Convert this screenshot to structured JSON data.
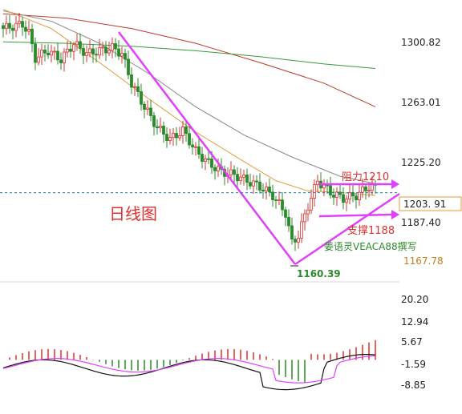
{
  "chart_data": [
    {
      "type": "candlestick",
      "title": "",
      "annotation_title": "日线图",
      "price_axis_ticks": [
        1300.82,
        1263.01,
        1225.2,
        1187.4
      ],
      "current_price": "1203. 91",
      "lower_marker": "1167.78",
      "low_label": "1160.39",
      "resistance_label": "阻力1210",
      "support_label": "支撑1188",
      "author_label": "姜语灵VEACA88撰写",
      "ylim": [
        1150,
        1330
      ],
      "colors": {
        "up": "#e0302e",
        "down": "#2b8a2b",
        "annotation": "#e040fb",
        "ref_line": "#1f7ab8"
      },
      "moving_averages": [
        {
          "color": "#c0392b",
          "points": [
            [
              0,
              1325
            ],
            [
              20,
              1322
            ],
            [
              40,
              1315
            ],
            [
              60,
              1305
            ],
            [
              80,
              1292
            ],
            [
              100,
              1278
            ],
            [
              116,
              1262
            ]
          ]
        },
        {
          "color": "#3a9a3a",
          "points": [
            [
              0,
              1306
            ],
            [
              20,
              1305
            ],
            [
              40,
              1303
            ],
            [
              60,
              1300
            ],
            [
              80,
              1296
            ],
            [
              100,
              1291
            ],
            [
              116,
              1288
            ]
          ]
        },
        {
          "color": "#888888",
          "points": [
            [
              0,
              1327
            ],
            [
              15,
              1320
            ],
            [
              30,
              1305
            ],
            [
              45,
              1285
            ],
            [
              60,
              1262
            ],
            [
              75,
              1243
            ],
            [
              90,
              1228
            ],
            [
              105,
              1215
            ],
            [
              116,
              1210
            ]
          ]
        },
        {
          "color": "#e39b3a",
          "points": [
            [
              0,
              1328
            ],
            [
              15,
              1315
            ],
            [
              30,
              1292
            ],
            [
              45,
              1268
            ],
            [
              60,
              1245
            ],
            [
              75,
              1225
            ],
            [
              85,
              1212
            ],
            [
              95,
              1205
            ],
            [
              105,
              1204
            ],
            [
              116,
              1202
            ]
          ]
        }
      ]
    },
    {
      "type": "histogram",
      "ticks": [
        20.2,
        12.94,
        5.67,
        -1.59,
        -8.85
      ],
      "ylim": [
        -12,
        24
      ]
    }
  ]
}
